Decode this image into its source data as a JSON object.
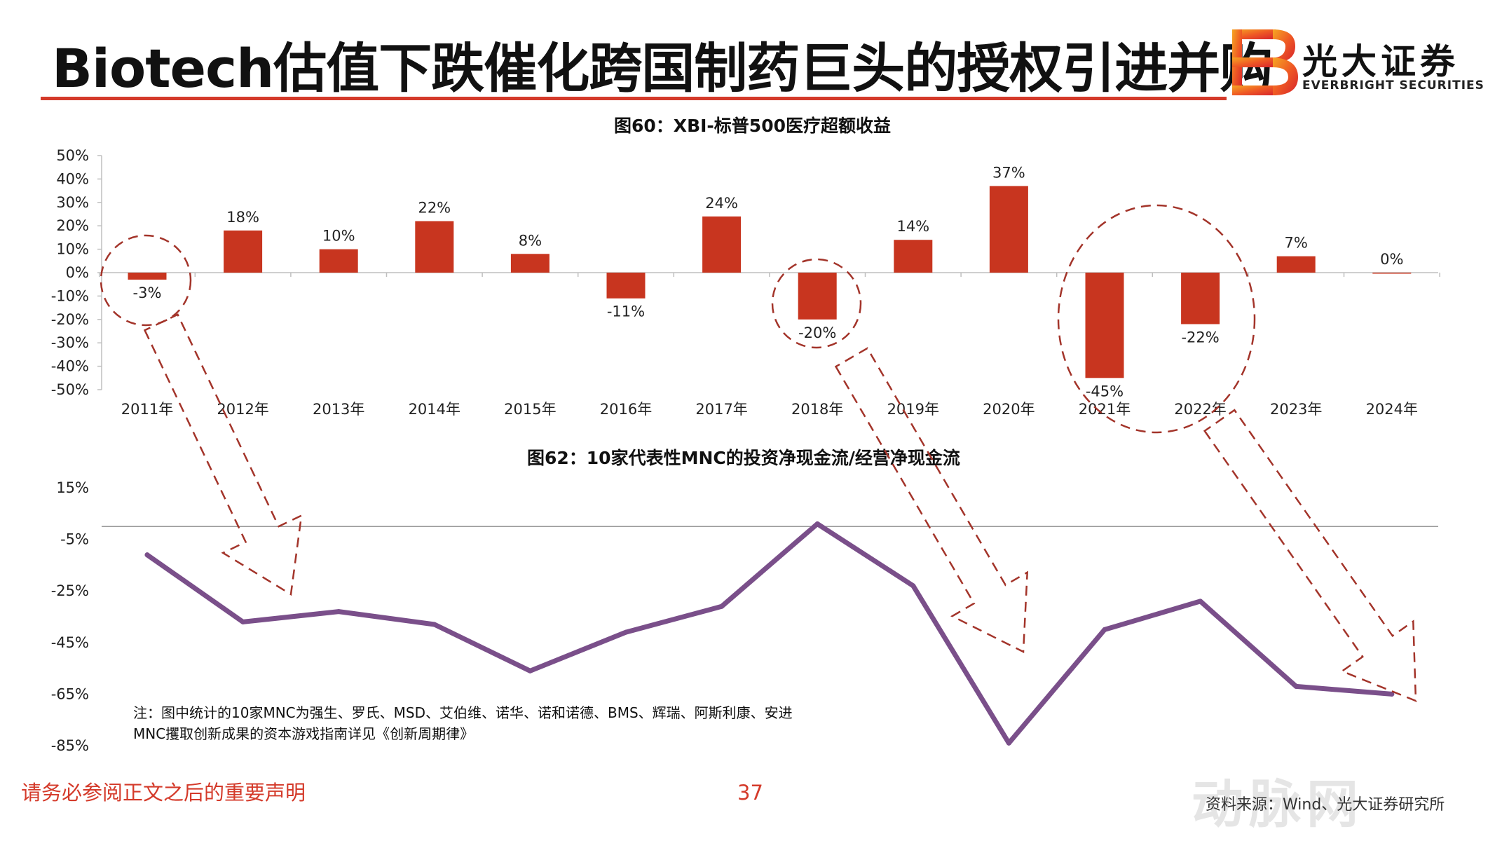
{
  "header": {
    "title": "Biotech估值下跌催化跨国制药巨头的授权引进并购",
    "brand_name": "光大证券",
    "brand_sub": "EVERBRIGHT SECURITIES"
  },
  "colors": {
    "accent": "#d43a2a",
    "bar": "#c8351f",
    "line": "#7a4f8a",
    "arrow": "#a3342a"
  },
  "chart_data": [
    {
      "type": "bar",
      "title": "图60：XBI-标普500医疗超额收益",
      "categories": [
        "2011年",
        "2012年",
        "2013年",
        "2014年",
        "2015年",
        "2016年",
        "2017年",
        "2018年",
        "2019年",
        "2020年",
        "2021年",
        "2022年",
        "2023年",
        "2024年"
      ],
      "values": [
        -3,
        18,
        10,
        22,
        8,
        -11,
        24,
        -20,
        14,
        37,
        -45,
        -22,
        7,
        0
      ],
      "labels": [
        "-3%",
        "18%",
        "10%",
        "22%",
        "8%",
        "-11%",
        "24%",
        "-20%",
        "14%",
        "37%",
        "-45%",
        "-22%",
        "7%",
        "0%"
      ],
      "ylim": [
        -50,
        50
      ],
      "yticks": [
        "50%",
        "40%",
        "30%",
        "20%",
        "10%",
        "0%",
        "-10%",
        "-20%",
        "-30%",
        "-40%",
        "-50%"
      ],
      "ytick_values": [
        50,
        40,
        30,
        20,
        10,
        0,
        -10,
        -20,
        -30,
        -40,
        -50
      ]
    },
    {
      "type": "line",
      "title": "图62：10家代表性MNC的投资净现金流/经营净现金流",
      "categories": [
        "2011年",
        "2012年",
        "2013年",
        "2014年",
        "2015年",
        "2016年",
        "2017年",
        "2018年",
        "2019年",
        "2020年",
        "2021年",
        "2022年",
        "2023年",
        "2024年"
      ],
      "values": [
        -11,
        -37,
        -33,
        -38,
        -56,
        -41,
        -31,
        1,
        -23,
        -84,
        -40,
        -29,
        -62,
        -65
      ],
      "ylim": [
        -85,
        15
      ],
      "yticks": [
        "15%",
        "-5%",
        "-25%",
        "-45%",
        "-65%",
        "-85%"
      ],
      "ytick_values": [
        15,
        -5,
        -25,
        -45,
        -65,
        -85
      ]
    }
  ],
  "note": {
    "line1": "注：图中统计的10家MNC为强生、罗氏、MSD、艾伯维、诺华、诺和诺德、BMS、辉瑞、阿斯利康、安进",
    "line2": "MNC攫取创新成果的资本游戏指南详见《创新周期律》"
  },
  "footer": {
    "disclaimer": "请务必参阅正文之后的重要声明",
    "page_number": "37",
    "source": "资料来源：Wind、光大证券研究所",
    "watermark": "动脉网"
  }
}
